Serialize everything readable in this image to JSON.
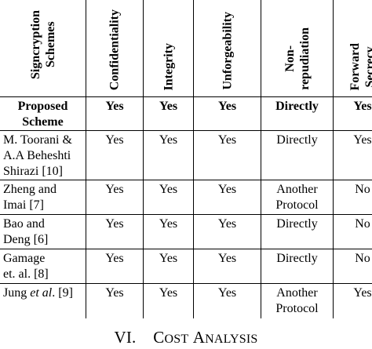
{
  "table": {
    "headers": [
      {
        "lines": [
          "Signcryption",
          "Schemes"
        ]
      },
      {
        "lines": [
          "Confidentiality"
        ]
      },
      {
        "lines": [
          "Integrity"
        ]
      },
      {
        "lines": [
          "Unforgeability"
        ]
      },
      {
        "lines": [
          "Non-",
          "repudiation"
        ]
      },
      {
        "lines": [
          "Forward",
          "Secrecy"
        ]
      }
    ],
    "rows": [
      {
        "scheme_lines": [
          "Proposed",
          "Scheme"
        ],
        "values": [
          "Yes",
          "Yes",
          "Yes",
          "Directly",
          "Yes"
        ]
      },
      {
        "scheme_lines": [
          "M. Toorani &",
          "A.A Beheshti",
          "Shirazi [10]"
        ],
        "values": [
          "Yes",
          "Yes",
          "Yes",
          "Directly",
          "Yes"
        ]
      },
      {
        "scheme_lines": [
          "Zheng and",
          "Imai [7]"
        ],
        "values": [
          "Yes",
          "Yes",
          "Yes",
          "Another Protocol",
          "No"
        ]
      },
      {
        "scheme_lines": [
          "Bao and",
          "Deng [6]"
        ],
        "values": [
          "Yes",
          "Yes",
          "Yes",
          "Directly",
          "No"
        ]
      },
      {
        "scheme_lines": [
          "Gamage",
          "et. al. [8]"
        ],
        "values": [
          "Yes",
          "Yes",
          "Yes",
          "Directly",
          "No"
        ]
      },
      {
        "scheme_prefix": "Jung ",
        "scheme_italic": "et al",
        "scheme_suffix": ". [9]",
        "values": [
          "Yes",
          "Yes",
          "Yes",
          "Another Protocol",
          "Yes"
        ]
      }
    ]
  },
  "section": {
    "number": "VI.",
    "title_initial_1": "C",
    "title_rest_1": "OST",
    "title_initial_2": "A",
    "title_rest_2": "NALYSIS"
  }
}
